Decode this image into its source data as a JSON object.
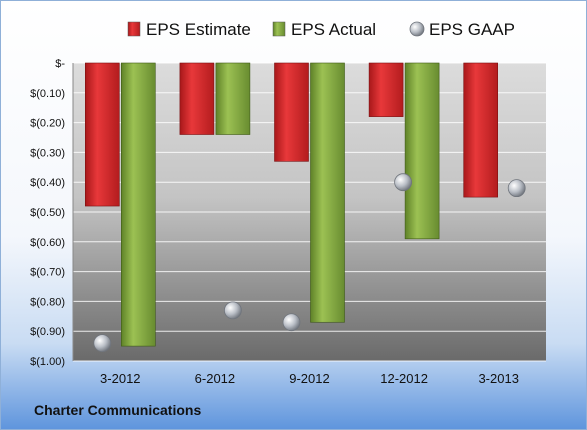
{
  "company": "Charter Communications",
  "colors": {
    "estimate": "#cc1f22",
    "actual": "#7a9f3a",
    "gaap": "#b9bec6"
  },
  "chart_data": {
    "type": "bar",
    "categories": [
      "3-2012",
      "6-2012",
      "9-2012",
      "12-2012",
      "3-2013"
    ],
    "series": [
      {
        "name": "EPS Estimate",
        "kind": "bar",
        "values": [
          -0.48,
          -0.24,
          -0.33,
          -0.18,
          -0.45
        ]
      },
      {
        "name": "EPS Actual",
        "kind": "bar",
        "values": [
          -0.95,
          -0.24,
          -0.87,
          -0.59,
          null
        ]
      },
      {
        "name": "EPS GAAP",
        "kind": "marker",
        "values": [
          -0.94,
          -0.83,
          -0.87,
          -0.4,
          -0.42
        ]
      }
    ],
    "ylim": [
      -1.0,
      0
    ],
    "yticks": [
      {
        "value": 0,
        "label": "$-"
      },
      {
        "value": -0.1,
        "label": "$(0.10)"
      },
      {
        "value": -0.2,
        "label": "$(0.20)"
      },
      {
        "value": -0.3,
        "label": "$(0.30)"
      },
      {
        "value": -0.4,
        "label": "$(0.40)"
      },
      {
        "value": -0.5,
        "label": "$(0.50)"
      },
      {
        "value": -0.6,
        "label": "$(0.60)"
      },
      {
        "value": -0.7,
        "label": "$(0.70)"
      },
      {
        "value": -0.8,
        "label": "$(0.80)"
      },
      {
        "value": -0.9,
        "label": "$(0.90)"
      },
      {
        "value": -1.0,
        "label": "$(1.00)"
      }
    ],
    "grid": true,
    "legend": "top"
  }
}
